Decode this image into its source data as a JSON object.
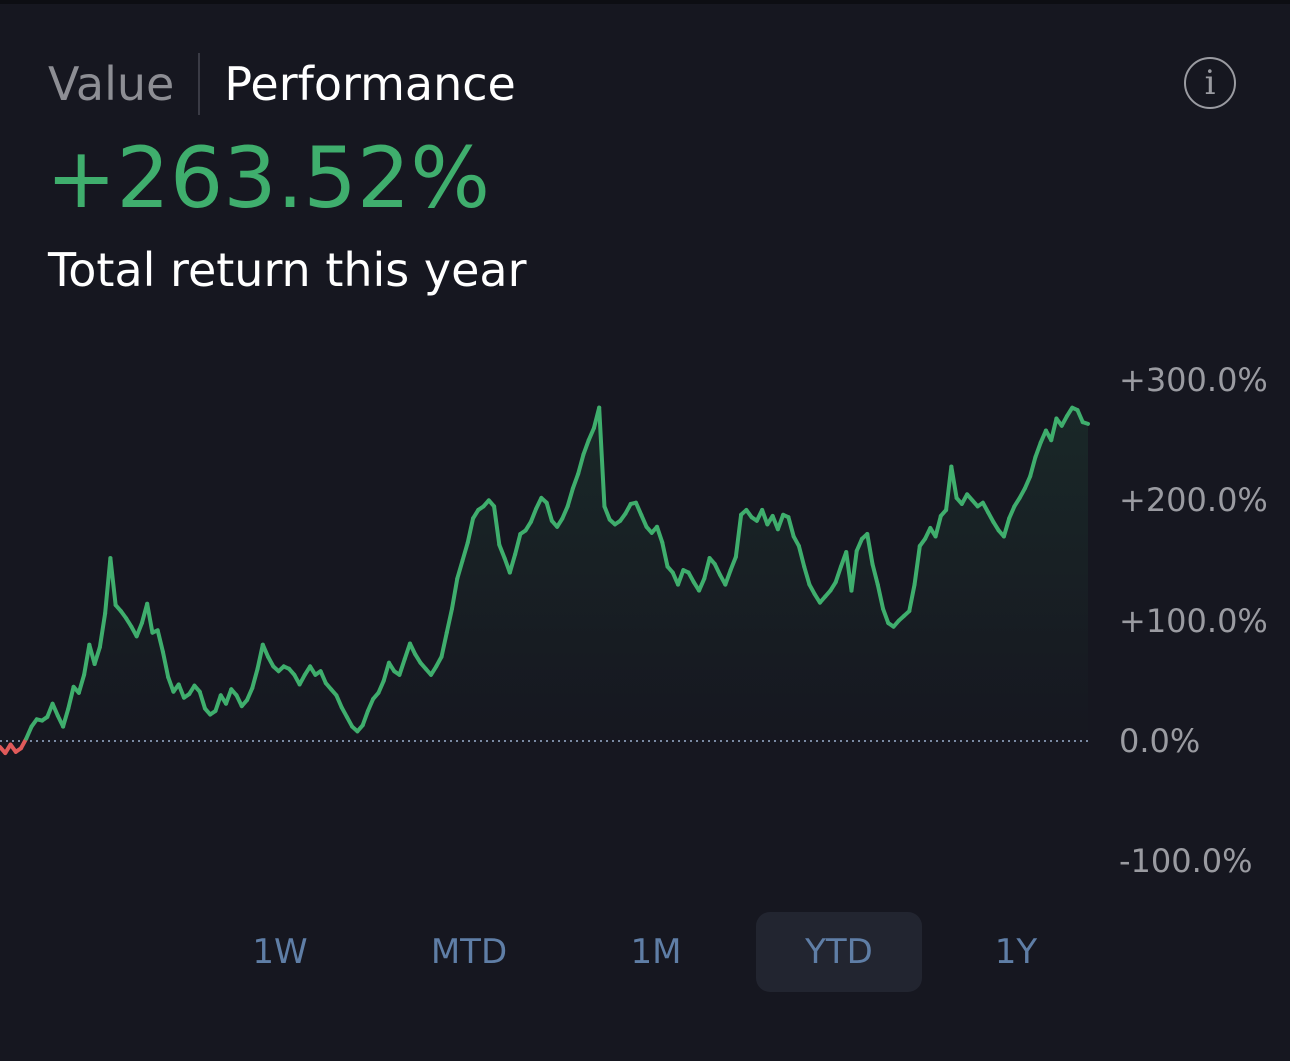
{
  "tabs": {
    "value_label": "Value",
    "performance_label": "Performance"
  },
  "info_icon_glyph": "i",
  "summary": {
    "return_value": "+263.52%",
    "subtitle": "Total return this year"
  },
  "time_ranges": [
    {
      "label": "1W",
      "active": false
    },
    {
      "label": "MTD",
      "active": false
    },
    {
      "label": "1M",
      "active": false
    },
    {
      "label": "YTD",
      "active": true
    },
    {
      "label": "1Y",
      "active": false
    }
  ],
  "colors": {
    "positive": "#3fae6d",
    "negative": "#e05a5a",
    "baseline": "#7a8aa3",
    "background": "#161720"
  },
  "chart_data": {
    "type": "line",
    "title": "",
    "xlabel": "",
    "ylabel": "",
    "ylim": [
      -100,
      300
    ],
    "y_ticks": [
      300,
      200,
      100,
      0,
      -100
    ],
    "y_tick_labels": [
      "+300.0%",
      "+200.0%",
      "+100.0%",
      "0.0%",
      "-100.0%"
    ],
    "baseline": 0,
    "grid": false,
    "series": [
      {
        "values": [
          -5,
          -10,
          -3,
          -9,
          -6,
          2,
          12,
          18,
          17,
          20,
          31,
          21,
          12,
          27,
          45,
          40,
          55,
          80,
          64,
          78,
          106,
          152,
          113,
          108,
          102,
          95,
          87,
          98,
          114,
          90,
          92,
          74,
          53,
          41,
          47,
          36,
          39,
          46,
          41,
          27,
          22,
          25,
          38,
          31,
          43,
          38,
          29,
          34,
          44,
          60,
          80,
          70,
          62,
          58,
          62,
          60,
          55,
          47,
          55,
          62,
          55,
          58,
          48,
          43,
          38,
          28,
          20,
          12,
          8,
          13,
          25,
          35,
          40,
          50,
          65,
          58,
          55,
          68,
          81,
          72,
          65,
          60,
          55,
          62,
          70,
          90,
          110,
          135,
          150,
          165,
          185,
          192,
          195,
          200,
          195,
          163,
          152,
          140,
          155,
          172,
          175,
          182,
          193,
          202,
          198,
          183,
          178,
          185,
          195,
          210,
          222,
          238,
          250,
          260,
          277,
          195,
          184,
          180,
          183,
          189,
          197,
          198,
          188,
          178,
          173,
          178,
          165,
          145,
          140,
          130,
          142,
          140,
          132,
          125,
          135,
          152,
          147,
          138,
          130,
          142,
          153,
          188,
          192,
          186,
          183,
          192,
          180,
          187,
          176,
          188,
          186,
          170,
          162,
          145,
          130,
          122,
          115,
          120,
          125,
          132,
          145,
          157,
          125,
          158,
          168,
          172,
          147,
          130,
          110,
          98,
          95,
          100,
          104,
          108,
          130,
          162,
          168,
          177,
          170,
          187,
          192,
          228,
          202,
          197,
          205,
          200,
          195,
          198,
          190,
          182,
          175,
          170,
          185,
          195,
          202,
          210,
          220,
          236,
          248,
          258,
          250,
          268,
          262,
          270,
          277,
          275,
          265,
          263.52
        ]
      }
    ]
  }
}
